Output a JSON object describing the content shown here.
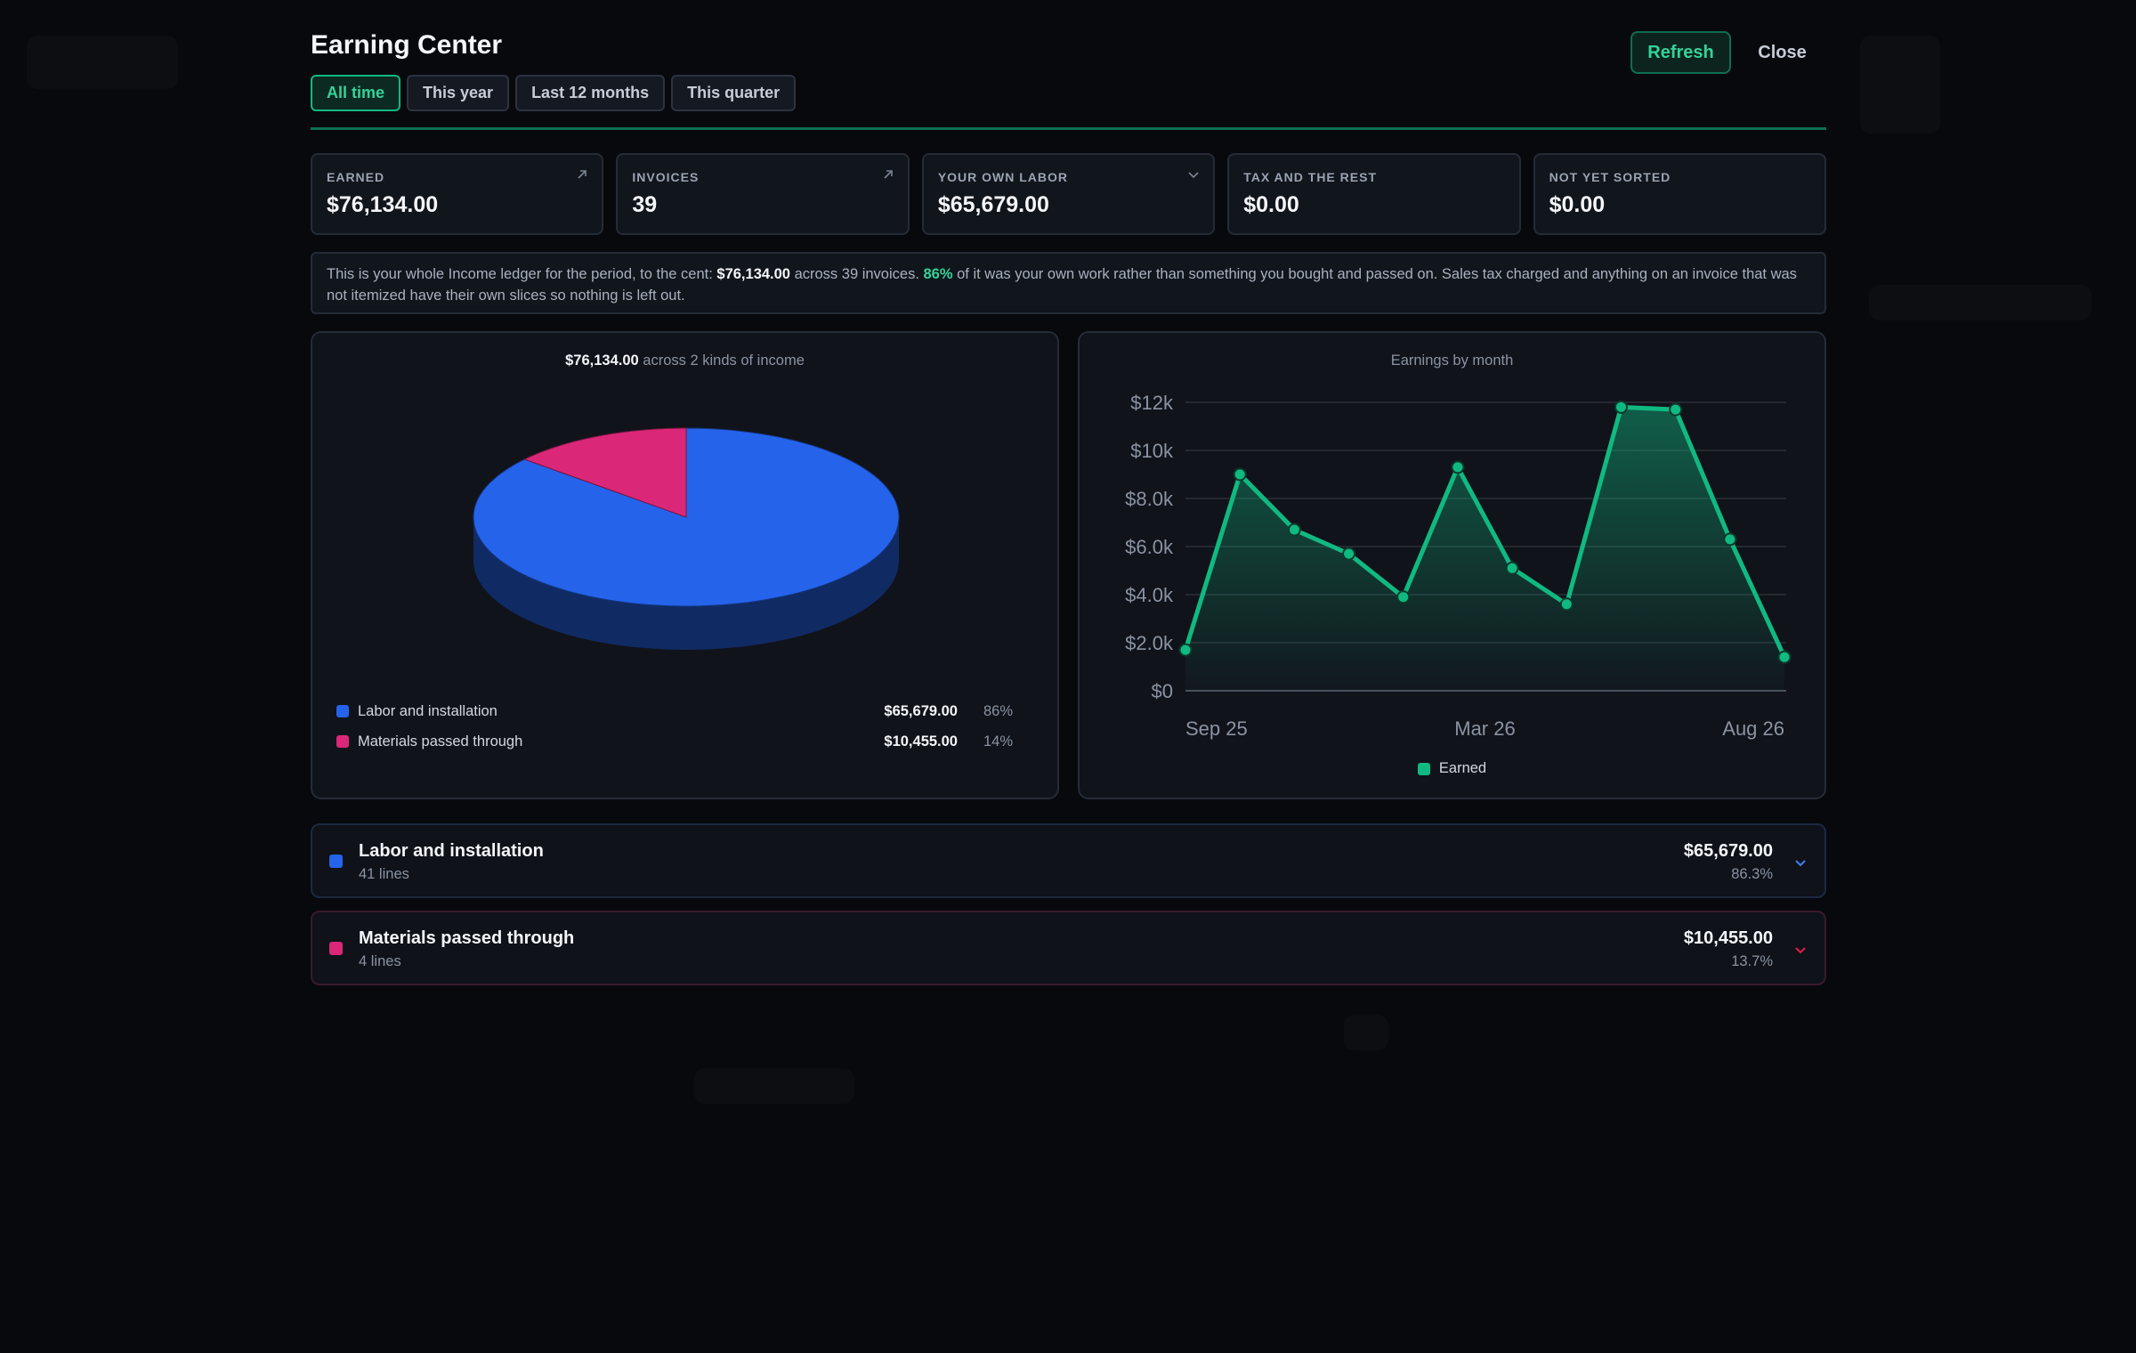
{
  "header": {
    "title": "Earning Center",
    "refresh_label": "Refresh",
    "close_label": "Close"
  },
  "period_tabs": [
    {
      "label": "All time",
      "active": true
    },
    {
      "label": "This year",
      "active": false
    },
    {
      "label": "Last 12 months",
      "active": false
    },
    {
      "label": "This quarter",
      "active": false
    }
  ],
  "stats": [
    {
      "label": "EARNED",
      "value": "$76,134.00",
      "icon": "arrow-up-right-icon"
    },
    {
      "label": "INVOICES",
      "value": "39",
      "icon": "arrow-up-right-icon"
    },
    {
      "label": "YOUR OWN LABOR",
      "value": "$65,679.00",
      "icon": "chevron-down-icon"
    },
    {
      "label": "TAX AND THE REST",
      "value": "$0.00",
      "icon": ""
    },
    {
      "label": "NOT YET SORTED",
      "value": "$0.00",
      "icon": ""
    }
  ],
  "summary": {
    "part1": "This is your whole Income ledger for the period, to the cent: ",
    "total": "$76,134.00",
    "part2": " across 39 invoices. ",
    "pct": "86%",
    "part3": " of it was your own work rather than something you bought and passed on. Sales tax charged and anything on an invoice that was not itemized have their own slices so nothing is left out."
  },
  "pie": {
    "title_amount": "$76,134.00",
    "title_rest": " across 2 kinds of income"
  },
  "line": {
    "title": "Earnings by month",
    "legend_label": "Earned"
  },
  "chart_data": [
    {
      "type": "pie",
      "title": "$76,134.00 across 2 kinds of income",
      "slices": [
        {
          "label": "Labor and installation",
          "value": 65679.0,
          "amount_text": "$65,679.00",
          "pct_text": "86%",
          "color": "#2563eb"
        },
        {
          "label": "Materials passed through",
          "value": 10455.0,
          "amount_text": "$10,455.00",
          "pct_text": "14%",
          "color": "#db2777"
        }
      ]
    },
    {
      "type": "area",
      "title": "Earnings by month",
      "x_tick_labels": [
        "Sep 25",
        "Mar 26",
        "Aug 26"
      ],
      "y_tick_labels": [
        "$0",
        "$2.0k",
        "$4.0k",
        "$6.0k",
        "$8.0k",
        "$10k",
        "$12k"
      ],
      "ylim": [
        0,
        12000
      ],
      "grid": true,
      "legend": "bottom",
      "series": [
        {
          "name": "Earned",
          "color": "#10b981",
          "values": [
            1700,
            9000,
            6700,
            5700,
            3900,
            9300,
            5100,
            3600,
            11800,
            11700,
            6300,
            1400
          ]
        }
      ]
    }
  ],
  "categories": [
    {
      "name": "Labor and installation",
      "lines": "41 lines",
      "amount": "$65,679.00",
      "pct": "86.3%",
      "color": "#2563eb",
      "chevron_color": "#3b82f6"
    },
    {
      "name": "Materials passed through",
      "lines": "4 lines",
      "amount": "$10,455.00",
      "pct": "13.7%",
      "color": "#db2777",
      "chevron_color": "#e11d48"
    }
  ]
}
